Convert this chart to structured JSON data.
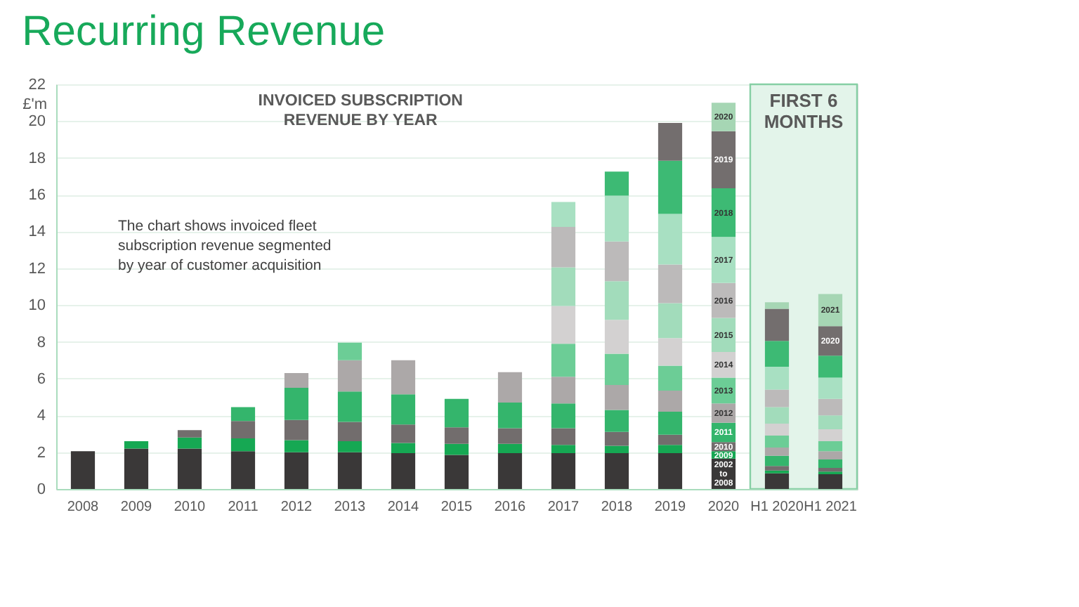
{
  "chart_data": {
    "type": "bar",
    "title": "Recurring Revenue",
    "subtitle": "INVOICED SUBSCRIPTION REVENUE BY YEAR",
    "ylabel": "£'m",
    "categories": [
      "2008",
      "2009",
      "2010",
      "2011",
      "2012",
      "2013",
      "2014",
      "2015",
      "2016",
      "2017",
      "2018",
      "2019",
      "2020",
      "H1 2020",
      "H1 2021"
    ],
    "stacked": true,
    "ylim": [
      0,
      22
    ],
    "yticks": [
      0,
      2,
      4,
      6,
      8,
      10,
      12,
      14,
      16,
      18,
      20,
      22
    ],
    "grid": "y",
    "series": [
      {
        "name": "2002 to 2008",
        "color": "#3a3838",
        "values": [
          2.05,
          2.2,
          2.2,
          2.05,
          2.0,
          2.0,
          1.95,
          1.85,
          1.95,
          1.95,
          1.95,
          1.95,
          1.65,
          0.85,
          0.8
        ]
      },
      {
        "name": "2009",
        "color": "#16a853",
        "values": [
          null,
          0.4,
          0.6,
          0.7,
          0.65,
          0.6,
          0.55,
          0.6,
          0.5,
          0.45,
          0.4,
          0.45,
          0.4,
          0.15,
          0.15
        ]
      },
      {
        "name": "2010",
        "color": "#726d6d",
        "values": [
          null,
          null,
          0.4,
          0.95,
          1.1,
          1.05,
          1.0,
          0.9,
          0.85,
          0.9,
          0.75,
          0.55,
          0.5,
          0.25,
          0.2
        ]
      },
      {
        "name": "2011",
        "color": "#34b56c",
        "values": [
          null,
          null,
          null,
          0.75,
          1.75,
          1.65,
          1.65,
          1.55,
          1.4,
          1.35,
          1.2,
          1.25,
          1.05,
          0.55,
          0.45
        ]
      },
      {
        "name": "2012",
        "color": "#aca8a8",
        "values": [
          null,
          null,
          null,
          null,
          0.8,
          1.7,
          1.85,
          null,
          1.65,
          1.45,
          1.35,
          1.15,
          1.05,
          0.45,
          0.45
        ]
      },
      {
        "name": "2013",
        "color": "#6ccd96",
        "values": [
          null,
          null,
          null,
          null,
          null,
          0.95,
          null,
          null,
          null,
          1.8,
          1.7,
          1.35,
          1.4,
          0.65,
          0.55
        ]
      },
      {
        "name": "2014",
        "color": "#d3d1d1",
        "values": [
          null,
          null,
          null,
          null,
          null,
          null,
          null,
          null,
          null,
          2.05,
          1.85,
          1.5,
          1.4,
          0.65,
          0.65
        ]
      },
      {
        "name": "2015",
        "color": "#a2dcbb",
        "values": [
          null,
          null,
          null,
          null,
          null,
          null,
          null,
          null,
          null,
          2.1,
          2.1,
          1.9,
          1.85,
          0.9,
          0.75
        ]
      },
      {
        "name": "2016",
        "color": "#bcbaba",
        "values": [
          null,
          null,
          null,
          null,
          null,
          null,
          null,
          null,
          null,
          2.2,
          2.15,
          2.1,
          1.9,
          0.95,
          0.9
        ]
      },
      {
        "name": "2017",
        "color": "#a8e0c2",
        "values": [
          null,
          null,
          null,
          null,
          null,
          null,
          null,
          null,
          null,
          1.35,
          2.5,
          2.75,
          2.5,
          1.25,
          1.15
        ]
      },
      {
        "name": "2018",
        "color": "#3dba74",
        "values": [
          null,
          null,
          null,
          null,
          null,
          null,
          null,
          null,
          null,
          null,
          1.3,
          2.9,
          2.65,
          1.4,
          1.2
        ]
      },
      {
        "name": "2019",
        "color": "#736e6e",
        "values": [
          null,
          null,
          null,
          null,
          null,
          null,
          null,
          null,
          null,
          null,
          null,
          2.05,
          3.1,
          1.75,
          null
        ]
      },
      {
        "name": "2020",
        "color": "#a6d6b4",
        "colors": [
          null,
          null,
          null,
          null,
          null,
          null,
          null,
          null,
          null,
          null,
          null,
          null,
          null,
          null,
          "#736e6e"
        ],
        "values": [
          null,
          null,
          null,
          null,
          null,
          null,
          null,
          null,
          null,
          null,
          null,
          null,
          1.55,
          0.35,
          1.6
        ]
      },
      {
        "name": "2021",
        "color": "#a6d6b4",
        "values": [
          null,
          null,
          null,
          null,
          null,
          null,
          null,
          null,
          null,
          null,
          null,
          null,
          null,
          null,
          1.75
        ]
      }
    ],
    "bands": [
      {
        "axis": "x",
        "from": "H1 2020",
        "to": "H1 2021",
        "label": "FIRST 6 MONTHS",
        "color": "#e3f4ea"
      }
    ],
    "annotations": [
      "The chart shows invoiced fleet subscription revenue segmented by year of customer acquisition"
    ]
  }
}
